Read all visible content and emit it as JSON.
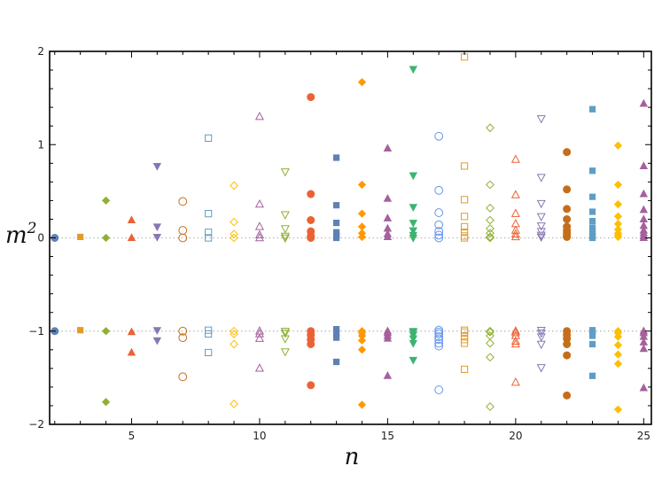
{
  "chart_data": {
    "type": "scatter",
    "xlabel": "n",
    "ylabel": {
      "base": "m",
      "superscript": "2"
    },
    "xlim": [
      1.8,
      25.3
    ],
    "ylim": [
      -2,
      2
    ],
    "x_ticks": [
      5,
      10,
      15,
      20,
      25
    ],
    "y_ticks": [
      -2,
      -1,
      0,
      1,
      2
    ],
    "grid": false,
    "reference_lines": [
      0,
      -1
    ],
    "series": [
      {
        "n": 2,
        "marker": "circle",
        "filled": true,
        "color": "#5E81B5",
        "values": [
          0,
          -1
        ]
      },
      {
        "n": 3,
        "marker": "square",
        "filled": true,
        "color": "#E19C24",
        "values": [
          0.01,
          -0.99
        ]
      },
      {
        "n": 4,
        "marker": "diamond",
        "filled": true,
        "color": "#8FB032",
        "values": [
          0.4,
          0,
          -1,
          -1.76
        ]
      },
      {
        "n": 5,
        "marker": "triangle-up",
        "filled": true,
        "color": "#EB6235",
        "values": [
          0.19,
          0,
          -1.01,
          -1.23
        ]
      },
      {
        "n": 6,
        "marker": "triangle-down",
        "filled": true,
        "color": "#8778B3",
        "values": [
          0.77,
          0.12,
          0.01,
          -0.99,
          -1.1
        ]
      },
      {
        "n": 7,
        "marker": "circle",
        "filled": false,
        "color": "#C56E1A",
        "values": [
          0.39,
          0.08,
          0,
          -1,
          -1.07,
          -1.49
        ]
      },
      {
        "n": 8,
        "marker": "square",
        "filled": false,
        "color": "#5D9EC7",
        "values": [
          1.07,
          0.26,
          0.06,
          0,
          -0.99,
          -1.03,
          -1.23
        ]
      },
      {
        "n": 9,
        "marker": "diamond",
        "filled": false,
        "color": "#FFBF00",
        "values": [
          0.56,
          0.17,
          0.04,
          0,
          -1,
          -1.03,
          -1.14,
          -1.78
        ]
      },
      {
        "n": 10,
        "marker": "triangle-up",
        "filled": false,
        "color": "#A5609D",
        "values": [
          1.3,
          0.36,
          0.12,
          0.03,
          0,
          -1,
          -1.03,
          -1.08,
          -1.4
        ]
      },
      {
        "n": 11,
        "marker": "triangle-down",
        "filled": false,
        "color": "#8FB032",
        "values": [
          0.71,
          0.25,
          0.1,
          0.02,
          0,
          -1,
          -1.02,
          -1.08,
          -1.22
        ]
      },
      {
        "n": 12,
        "marker": "circle",
        "filled": true,
        "color": "#EB6235",
        "values": [
          1.51,
          0.47,
          0.19,
          0.07,
          0.02,
          0,
          -1,
          -1.04,
          -1.09,
          -1.14,
          -1.58
        ]
      },
      {
        "n": 13,
        "marker": "square",
        "filled": true,
        "color": "#5E81B5",
        "values": [
          0.86,
          0.35,
          0.16,
          0.06,
          0.03,
          0,
          -0.98,
          -1.02,
          -1.07,
          -1.33
        ]
      },
      {
        "n": 14,
        "marker": "diamond",
        "filled": true,
        "color": "#FF9900",
        "values": [
          1.67,
          0.57,
          0.26,
          0.12,
          0.05,
          0.01,
          -1,
          -1.02,
          -1.05,
          -1.1,
          -1.2,
          -1.79
        ]
      },
      {
        "n": 15,
        "marker": "triangle-up",
        "filled": true,
        "color": "#A5609D",
        "values": [
          0.96,
          0.42,
          0.21,
          0.1,
          0.04,
          0.01,
          -1,
          -1.02,
          -1.05,
          -1.08,
          -1.48
        ]
      },
      {
        "n": 16,
        "marker": "triangle-down",
        "filled": true,
        "color": "#3CB371",
        "values": [
          1.81,
          0.67,
          0.33,
          0.16,
          0.08,
          0.03,
          0,
          -1,
          -1.01,
          -1.04,
          -1.08,
          -1.13,
          -1.31
        ]
      },
      {
        "n": 17,
        "marker": "circle",
        "filled": false,
        "color": "#6495ED",
        "values": [
          1.09,
          0.51,
          0.27,
          0.14,
          0.07,
          0.03,
          0,
          -0.99,
          -1.01,
          -1.03,
          -1.06,
          -1.09,
          -1.13,
          -1.16,
          -1.63
        ]
      },
      {
        "n": 18,
        "marker": "square",
        "filled": false,
        "color": "#E19C24",
        "values": [
          1.94,
          0.77,
          0.41,
          0.23,
          0.12,
          0.06,
          0.02,
          0,
          -0.99,
          -1.01,
          -1.05,
          -1.09,
          -1.13,
          -1.41
        ]
      },
      {
        "n": 19,
        "marker": "diamond",
        "filled": false,
        "color": "#8FB032",
        "values": [
          1.18,
          0.57,
          0.32,
          0.19,
          0.1,
          0.05,
          0.01,
          0,
          -1,
          -1.01,
          -1.05,
          -1.13,
          -1.28,
          -1.81
        ]
      },
      {
        "n": 20,
        "marker": "triangle-up",
        "filled": false,
        "color": "#EB6235",
        "values": [
          0.84,
          0.46,
          0.26,
          0.15,
          0.08,
          0.04,
          0.01,
          -1,
          -1.02,
          -1.05,
          -1.11,
          -1.14,
          -1.55
        ]
      },
      {
        "n": 21,
        "marker": "triangle-down",
        "filled": false,
        "color": "#8778B3",
        "values": [
          1.28,
          0.65,
          0.37,
          0.23,
          0.13,
          0.07,
          0.03,
          0.01,
          -0.99,
          -1.02,
          -1.06,
          -1.14,
          -1.39
        ]
      },
      {
        "n": 22,
        "marker": "circle",
        "filled": true,
        "color": "#C56E1A",
        "values": [
          0.92,
          0.52,
          0.31,
          0.2,
          0.12,
          0.08,
          0.05,
          0.02,
          0.01,
          -1,
          -1.04,
          -1.08,
          -1.14,
          -1.26,
          -1.69
        ]
      },
      {
        "n": 23,
        "marker": "square",
        "filled": true,
        "color": "#5D9EC7",
        "values": [
          1.38,
          0.72,
          0.44,
          0.28,
          0.18,
          0.11,
          0.07,
          0.04,
          0.02,
          0,
          -0.99,
          -1.02,
          -1.05,
          -1.14,
          -1.48
        ]
      },
      {
        "n": 24,
        "marker": "diamond",
        "filled": true,
        "color": "#FFBF00",
        "values": [
          0.99,
          0.57,
          0.36,
          0.23,
          0.15,
          0.09,
          0.05,
          0.03,
          0.01,
          -1,
          -1.02,
          -1.06,
          -1.15,
          -1.25,
          -1.35,
          -1.84
        ]
      },
      {
        "n": 25,
        "marker": "triangle-up",
        "filled": true,
        "color": "#A5609D",
        "values": [
          1.44,
          0.77,
          0.47,
          0.3,
          0.2,
          0.13,
          0.08,
          0.05,
          0.02,
          0,
          -1,
          -1.02,
          -1.06,
          -1.12,
          -1.19,
          -1.61
        ]
      }
    ]
  }
}
